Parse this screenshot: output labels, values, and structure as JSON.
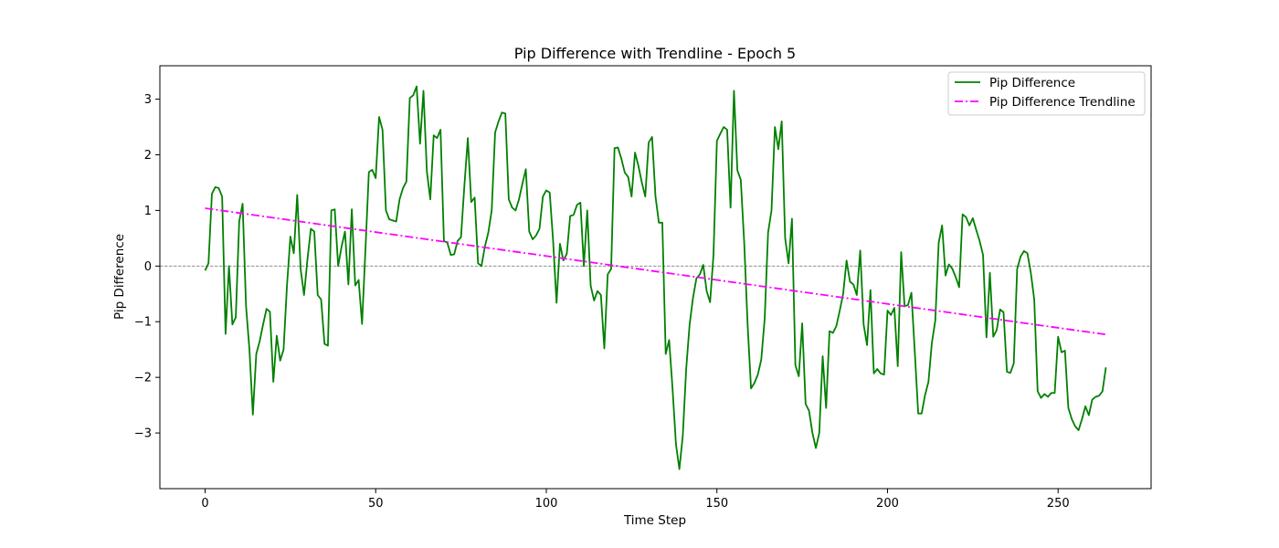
{
  "chart_data": {
    "type": "line",
    "title": "Pip Difference with Trendline - Epoch 5",
    "xlabel": "Time Step",
    "ylabel": "Pip Difference",
    "xlim": [
      -13.25,
      277.25
    ],
    "ylim": [
      -4.0,
      3.6
    ],
    "xticks": [
      0,
      50,
      100,
      150,
      200,
      250
    ],
    "yticks": [
      -3,
      -2,
      -1,
      0,
      1,
      2,
      3
    ],
    "legend_position": "top-right",
    "grid": false,
    "reference_line": {
      "y": 0,
      "color": "#808080",
      "style": "dashed"
    },
    "series": [
      {
        "name": "Pip Difference",
        "color": "#008000",
        "style": "solid",
        "x_start": 0,
        "x_step": 1,
        "values": [
          -0.08,
          0.05,
          1.3,
          1.42,
          1.4,
          1.25,
          -1.22,
          0.0,
          -1.05,
          -0.92,
          0.8,
          1.12,
          -0.72,
          -1.5,
          -2.67,
          -1.58,
          -1.35,
          -1.05,
          -0.77,
          -0.82,
          -2.08,
          -1.25,
          -1.7,
          -1.5,
          -0.35,
          0.53,
          0.23,
          1.28,
          -0.05,
          -0.52,
          0.12,
          0.67,
          0.62,
          -0.52,
          -0.6,
          -1.4,
          -1.43,
          1.0,
          1.02,
          0.0,
          0.35,
          0.62,
          -0.33,
          1.02,
          -0.35,
          -0.25,
          -1.04,
          0.3,
          1.69,
          1.73,
          1.58,
          2.68,
          2.45,
          1.0,
          0.84,
          0.82,
          0.8,
          1.2,
          1.4,
          1.52,
          3.02,
          3.07,
          3.23,
          2.2,
          3.15,
          1.7,
          1.2,
          2.35,
          2.3,
          2.45,
          0.45,
          0.42,
          0.2,
          0.21,
          0.45,
          0.52,
          1.45,
          2.3,
          1.15,
          1.23,
          0.05,
          0.0,
          0.35,
          0.6,
          1.0,
          2.4,
          2.6,
          2.76,
          2.74,
          1.2,
          1.05,
          1.0,
          1.2,
          1.48,
          1.74,
          0.62,
          0.48,
          0.55,
          0.67,
          1.25,
          1.36,
          1.32,
          0.45,
          -0.66,
          0.4,
          0.1,
          0.22,
          0.9,
          0.92,
          1.1,
          1.14,
          0.0,
          1.0,
          -0.35,
          -0.62,
          -0.45,
          -0.52,
          -1.48,
          -0.15,
          -0.05,
          2.12,
          2.13,
          1.93,
          1.68,
          1.6,
          1.25,
          2.04,
          1.8,
          1.5,
          1.25,
          2.22,
          2.32,
          1.25,
          0.78,
          0.78,
          -1.58,
          -1.33,
          -2.2,
          -3.2,
          -3.65,
          -3.05,
          -1.85,
          -1.05,
          -0.57,
          -0.22,
          -0.15,
          0.02,
          -0.45,
          -0.65,
          0.2,
          2.25,
          2.38,
          2.5,
          2.45,
          1.05,
          3.15,
          1.72,
          1.55,
          0.42,
          -1.05,
          -2.2,
          -2.1,
          -1.95,
          -1.68,
          -0.95,
          0.6,
          1.0,
          2.5,
          2.1,
          2.6,
          0.5,
          0.05,
          0.85,
          -1.78,
          -1.98,
          -1.03,
          -2.48,
          -2.6,
          -3.0,
          -3.27,
          -3.0,
          -1.62,
          -2.55,
          -1.17,
          -1.2,
          -1.08,
          -0.8,
          -0.5,
          0.1,
          -0.28,
          -0.33,
          -0.52,
          0.28,
          -1.05,
          -1.42,
          -0.43,
          -1.93,
          -1.85,
          -1.93,
          -1.95,
          -0.8,
          -0.88,
          -0.75,
          -1.8,
          0.25,
          -0.72,
          -0.7,
          -0.48,
          -1.55,
          -2.65,
          -2.65,
          -2.32,
          -2.08,
          -1.38,
          -0.98,
          0.42,
          0.73,
          -0.17,
          0.03,
          -0.05,
          -0.2,
          -0.38,
          0.93,
          0.88,
          0.73,
          0.86,
          0.65,
          0.45,
          0.2,
          -1.28,
          -0.12,
          -1.27,
          -1.15,
          -0.78,
          -0.83,
          -1.9,
          -1.92,
          -1.75,
          -0.05,
          0.17,
          0.27,
          0.23,
          -0.12,
          -0.6,
          -2.25,
          -2.37,
          -2.3,
          -2.35,
          -2.28,
          -2.28,
          -1.27,
          -1.55,
          -1.52,
          -2.55,
          -2.75,
          -2.88,
          -2.95,
          -2.75,
          -2.52,
          -2.68,
          -2.4,
          -2.35,
          -2.33,
          -2.25,
          -1.82
        ]
      },
      {
        "name": "Pip Difference Trendline",
        "color": "#ff00ff",
        "style": "dashdot",
        "x": [
          0,
          264
        ],
        "values": [
          1.04,
          -1.23
        ]
      }
    ]
  }
}
